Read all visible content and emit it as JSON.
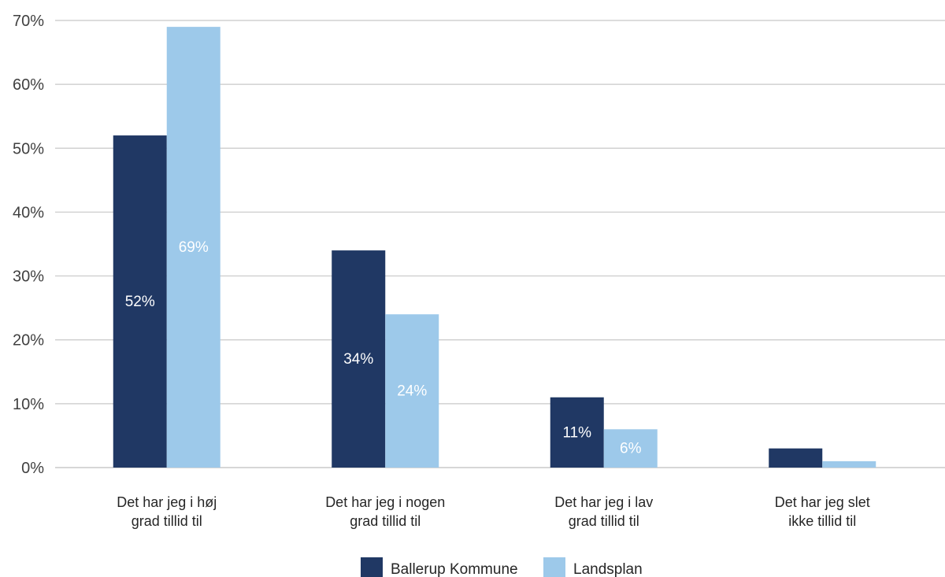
{
  "chart_data": {
    "type": "bar",
    "categories": [
      [
        "Det har jeg i høj",
        "grad tillid til"
      ],
      [
        "Det har jeg i nogen",
        "grad tillid til"
      ],
      [
        "Det har jeg i lav",
        "grad tillid til"
      ],
      [
        "Det har jeg slet",
        "ikke tillid til"
      ]
    ],
    "series": [
      {
        "name": "Ballerup Kommune",
        "color": "#203864",
        "values": [
          52,
          34,
          11,
          3
        ],
        "labels": [
          "52%",
          "34%",
          "11%",
          ""
        ]
      },
      {
        "name": "Landsplan",
        "color": "#9dc9ea",
        "values": [
          69,
          24,
          6,
          1
        ],
        "labels": [
          "69%",
          "24%",
          "6%",
          ""
        ]
      }
    ],
    "ylim": [
      0,
      70
    ],
    "yticks": [
      0,
      10,
      20,
      30,
      40,
      50,
      60,
      70
    ],
    "ytick_labels": [
      "0%",
      "10%",
      "20%",
      "30%",
      "40%",
      "50%",
      "60%",
      "70%"
    ],
    "grid": true,
    "legend": "bottom-center"
  }
}
